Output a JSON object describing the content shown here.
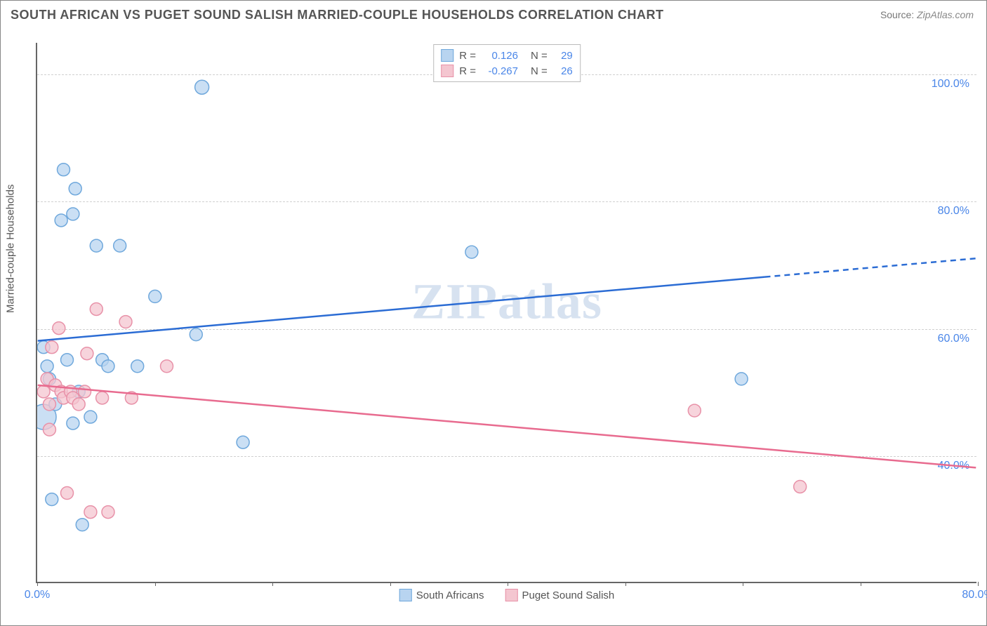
{
  "title": "SOUTH AFRICAN VS PUGET SOUND SALISH MARRIED-COUPLE HOUSEHOLDS CORRELATION CHART",
  "source_label": "Source:",
  "source_value": "ZipAtlas.com",
  "watermark": "ZIPatlas",
  "ylabel": "Married-couple Households",
  "chart": {
    "type": "scatter",
    "xlim": [
      0,
      80
    ],
    "ylim": [
      20,
      105
    ],
    "xtick_labels": {
      "0": "0.0%",
      "80": "80.0%"
    },
    "xtick_marks": [
      0,
      10,
      20,
      30,
      40,
      50,
      60,
      70,
      80
    ],
    "ytick_labels": {
      "40": "40.0%",
      "60": "60.0%",
      "80": "80.0%",
      "100": "100.0%"
    },
    "gridlines_y": [
      40,
      60,
      80,
      100
    ],
    "background_color": "#ffffff",
    "grid_color": "#d0d0d0",
    "axis_color": "#666666",
    "series": [
      {
        "name": "South Africans",
        "color_fill": "#b8d4f0",
        "color_stroke": "#6fa8dc",
        "r_label": "R =",
        "r_value": "0.126",
        "n_label": "N =",
        "n_value": "29",
        "marker_radius": 9,
        "line_color": "#2b6cd4",
        "line_width": 2.5,
        "trend": {
          "x1": 0,
          "y1": 58,
          "x2": 80,
          "y2": 71,
          "dash_from_x": 62
        },
        "points": [
          {
            "x": 0.5,
            "y": 46,
            "r": 18
          },
          {
            "x": 0.5,
            "y": 57,
            "r": 9
          },
          {
            "x": 0.8,
            "y": 54,
            "r": 9
          },
          {
            "x": 1.0,
            "y": 52,
            "r": 9
          },
          {
            "x": 1.2,
            "y": 33,
            "r": 9
          },
          {
            "x": 1.5,
            "y": 48,
            "r": 9
          },
          {
            "x": 2.0,
            "y": 77,
            "r": 9
          },
          {
            "x": 2.2,
            "y": 85,
            "r": 9
          },
          {
            "x": 2.5,
            "y": 55,
            "r": 9
          },
          {
            "x": 3.0,
            "y": 78,
            "r": 9
          },
          {
            "x": 3.0,
            "y": 45,
            "r": 9
          },
          {
            "x": 3.2,
            "y": 82,
            "r": 9
          },
          {
            "x": 3.5,
            "y": 50,
            "r": 9
          },
          {
            "x": 3.8,
            "y": 29,
            "r": 9
          },
          {
            "x": 4.5,
            "y": 46,
            "r": 9
          },
          {
            "x": 5.0,
            "y": 73,
            "r": 9
          },
          {
            "x": 5.5,
            "y": 55,
            "r": 9
          },
          {
            "x": 6.0,
            "y": 54,
            "r": 9
          },
          {
            "x": 7.0,
            "y": 73,
            "r": 9
          },
          {
            "x": 8.5,
            "y": 54,
            "r": 9
          },
          {
            "x": 10.0,
            "y": 65,
            "r": 9
          },
          {
            "x": 13.5,
            "y": 59,
            "r": 9
          },
          {
            "x": 14.0,
            "y": 98,
            "r": 10
          },
          {
            "x": 17.5,
            "y": 42,
            "r": 9
          },
          {
            "x": 37.0,
            "y": 72,
            "r": 9
          },
          {
            "x": 60.0,
            "y": 52,
            "r": 9
          }
        ]
      },
      {
        "name": "Puget Sound Salish",
        "color_fill": "#f4c6d0",
        "color_stroke": "#e891a8",
        "r_label": "R =",
        "r_value": "-0.267",
        "n_label": "N =",
        "n_value": "26",
        "marker_radius": 9,
        "line_color": "#e86b8f",
        "line_width": 2.5,
        "trend": {
          "x1": 0,
          "y1": 51,
          "x2": 80,
          "y2": 38,
          "dash_from_x": 999
        },
        "points": [
          {
            "x": 0.5,
            "y": 50,
            "r": 9
          },
          {
            "x": 0.8,
            "y": 52,
            "r": 9
          },
          {
            "x": 1.0,
            "y": 48,
            "r": 9
          },
          {
            "x": 1.0,
            "y": 44,
            "r": 9
          },
          {
            "x": 1.2,
            "y": 57,
            "r": 9
          },
          {
            "x": 1.5,
            "y": 51,
            "r": 9
          },
          {
            "x": 1.8,
            "y": 60,
            "r": 9
          },
          {
            "x": 2.0,
            "y": 50,
            "r": 9
          },
          {
            "x": 2.2,
            "y": 49,
            "r": 9
          },
          {
            "x": 2.5,
            "y": 34,
            "r": 9
          },
          {
            "x": 2.8,
            "y": 50,
            "r": 9
          },
          {
            "x": 3.0,
            "y": 49,
            "r": 9
          },
          {
            "x": 3.5,
            "y": 48,
            "r": 9
          },
          {
            "x": 4.0,
            "y": 50,
            "r": 9
          },
          {
            "x": 4.2,
            "y": 56,
            "r": 9
          },
          {
            "x": 4.5,
            "y": 31,
            "r": 9
          },
          {
            "x": 5.0,
            "y": 63,
            "r": 9
          },
          {
            "x": 5.5,
            "y": 49,
            "r": 9
          },
          {
            "x": 6.0,
            "y": 31,
            "r": 9
          },
          {
            "x": 7.5,
            "y": 61,
            "r": 9
          },
          {
            "x": 8.0,
            "y": 49,
            "r": 9
          },
          {
            "x": 11.0,
            "y": 54,
            "r": 9
          },
          {
            "x": 56.0,
            "y": 47,
            "r": 9
          },
          {
            "x": 65.0,
            "y": 35,
            "r": 9
          }
        ]
      }
    ]
  }
}
